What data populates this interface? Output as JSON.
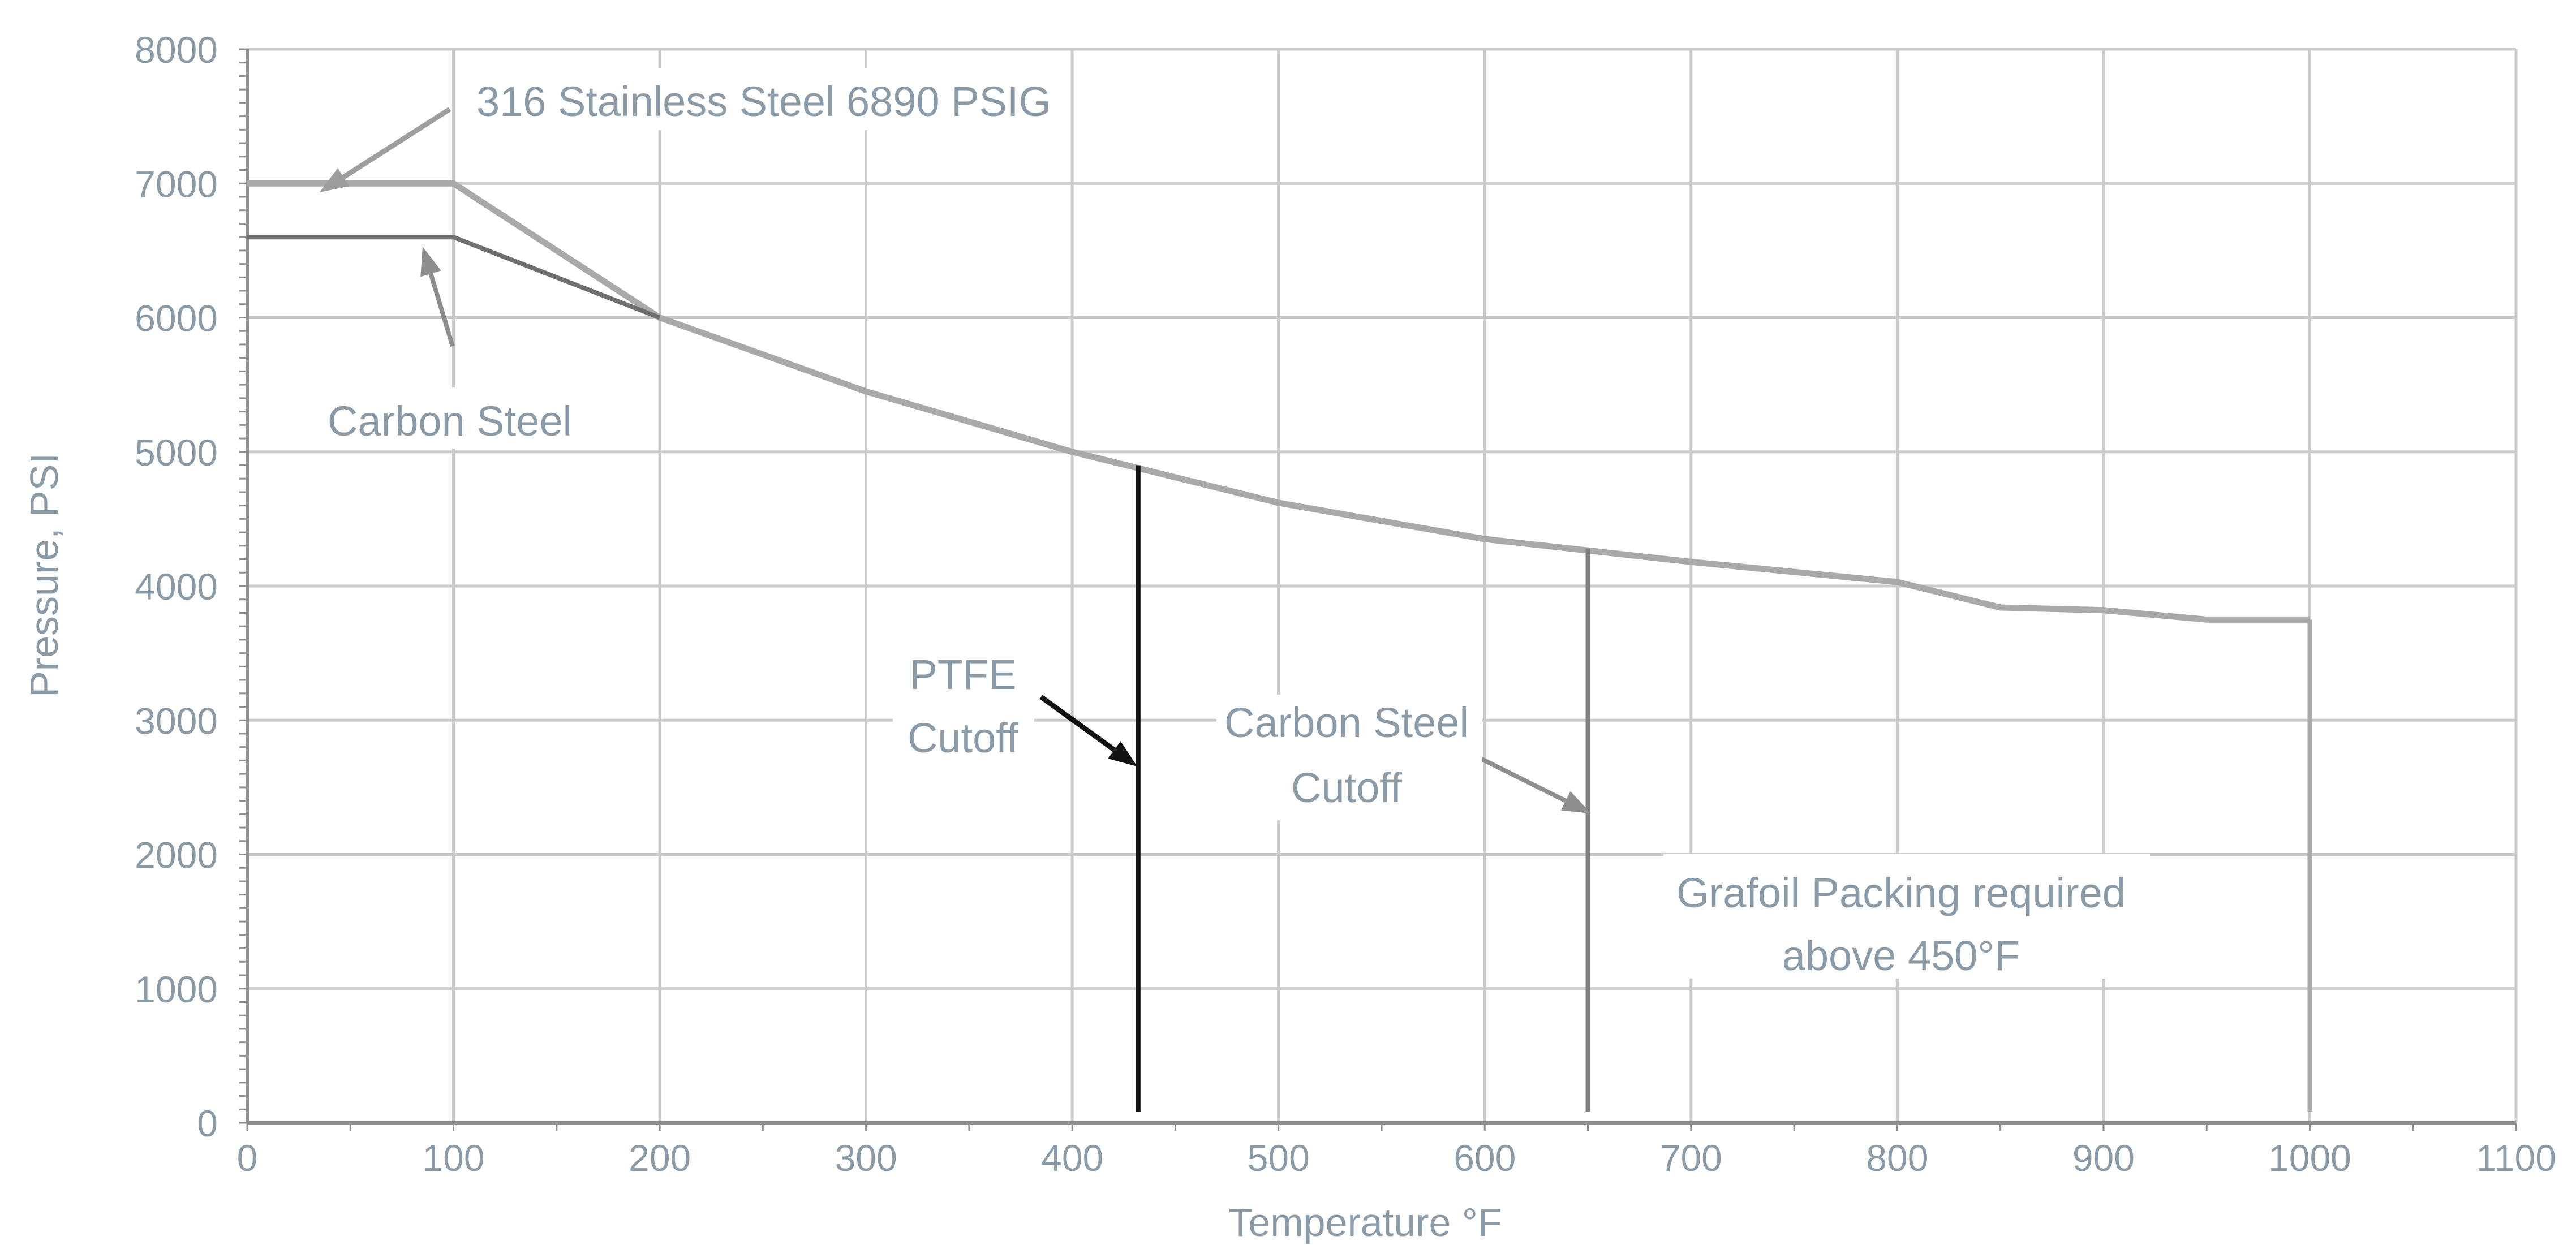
{
  "chart_data": {
    "type": "line",
    "xlabel": "Temperature °F",
    "ylabel": "Pressure, PSI",
    "xlim": [
      0,
      1100
    ],
    "ylim": [
      0,
      8000
    ],
    "x_ticks": [
      0,
      100,
      200,
      300,
      400,
      500,
      600,
      700,
      800,
      900,
      1000,
      1100
    ],
    "y_ticks": [
      0,
      1000,
      2000,
      3000,
      4000,
      5000,
      6000,
      7000,
      8000
    ],
    "grid": true,
    "series": [
      {
        "color": "#a7a9ab",
        "points": [
          [
            0,
            7000
          ],
          [
            100,
            7000
          ],
          [
            200,
            6000
          ],
          [
            300,
            5450
          ],
          [
            400,
            5000
          ],
          [
            500,
            4620
          ],
          [
            600,
            4350
          ],
          [
            700,
            4180
          ],
          [
            800,
            4030
          ],
          [
            850,
            3840
          ],
          [
            900,
            3820
          ],
          [
            950,
            3750
          ],
          [
            1000,
            3750
          ]
        ]
      },
      {
        "color": "#6d6f71",
        "points": [
          [
            0,
            6600
          ],
          [
            100,
            6600
          ],
          [
            200,
            6000
          ]
        ]
      }
    ],
    "cutoffs": [
      {
        "x": 432,
        "y_top": 4900,
        "color": "#111111"
      },
      {
        "x": 650,
        "y_top": 4280,
        "color": "#7d7f81"
      },
      {
        "x": 1000,
        "y_top": 3750,
        "color": "#a7a9ab"
      }
    ],
    "annotations": [
      {
        "id": "ss",
        "lines": [
          "316 Stainless Steel 6890 PSIG"
        ]
      },
      {
        "id": "cs",
        "lines": [
          "Carbon Steel"
        ]
      },
      {
        "id": "ptfe",
        "lines": [
          "PTFE",
          "Cutoff"
        ]
      },
      {
        "id": "cscut",
        "lines": [
          "Carbon Steel",
          "Cutoff"
        ]
      },
      {
        "id": "grafoil",
        "lines": [
          "Grafoil Packing required",
          "above 450°F"
        ]
      }
    ]
  }
}
